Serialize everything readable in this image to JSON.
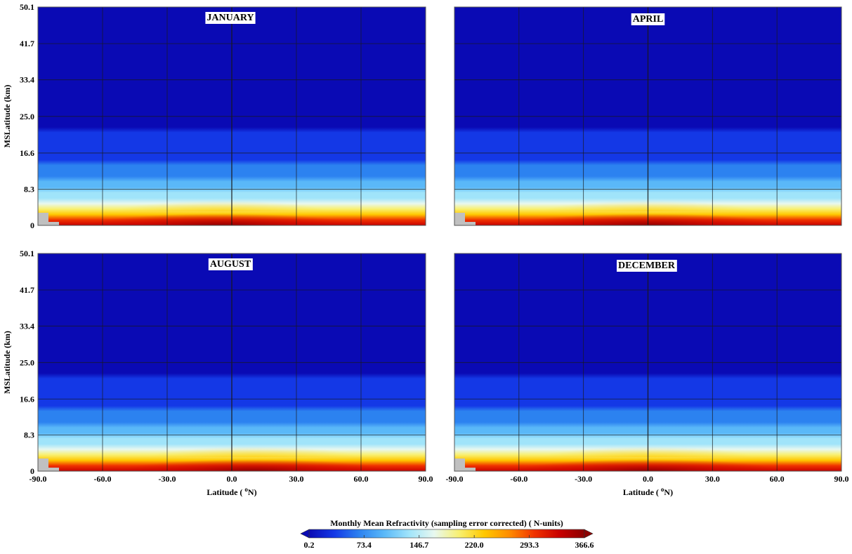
{
  "chart_data": {
    "type": "heatmap",
    "panels": [
      {
        "title": "JANUARY",
        "equator_peak_lat": -5
      },
      {
        "title": "APRIL",
        "equator_peak_lat": 0
      },
      {
        "title": "AUGUST",
        "equator_peak_lat": 10
      },
      {
        "title": "DECEMBER",
        "equator_peak_lat": 0
      }
    ],
    "x_ticks": [
      "-90.0",
      "-60.0",
      "-30.0",
      "0.0",
      "30.0",
      "60.0",
      "90.0"
    ],
    "x_values": [
      -90,
      -60,
      -30,
      0,
      30,
      60,
      90
    ],
    "y_ticks": [
      "50.1",
      "41.7",
      "33.4",
      "25.0",
      "16.6",
      "8.3",
      "0"
    ],
    "y_values": [
      50.1,
      41.7,
      33.4,
      25.0,
      16.6,
      8.3,
      0
    ],
    "xlim": [
      -90,
      90
    ],
    "ylim": [
      0,
      50.1
    ],
    "xlabel": "Latitude (",
    "xlabel_sup": "o",
    "xlabel_unit": "N)",
    "ylabel": "MSLatitude (km)",
    "grid": true,
    "colorbar": {
      "title": "Monthly Mean Refractivity (sampling error corrected) ( N-units)",
      "tick_labels": [
        "0.2",
        "73.4",
        "146.7",
        "220.0",
        "293.3",
        "366.6"
      ],
      "tick_values": [
        0.2,
        73.4,
        146.7,
        220.0,
        293.3,
        366.6
      ],
      "range": [
        0.2,
        366.6
      ],
      "colors": [
        "#0a0ab4",
        "#1438e6",
        "#2c82f0",
        "#5ab8f8",
        "#a0e4fa",
        "#e8f8f0",
        "#f8f070",
        "#ffc800",
        "#ff8c00",
        "#f03200",
        "#c80000",
        "#8c0000"
      ]
    }
  }
}
